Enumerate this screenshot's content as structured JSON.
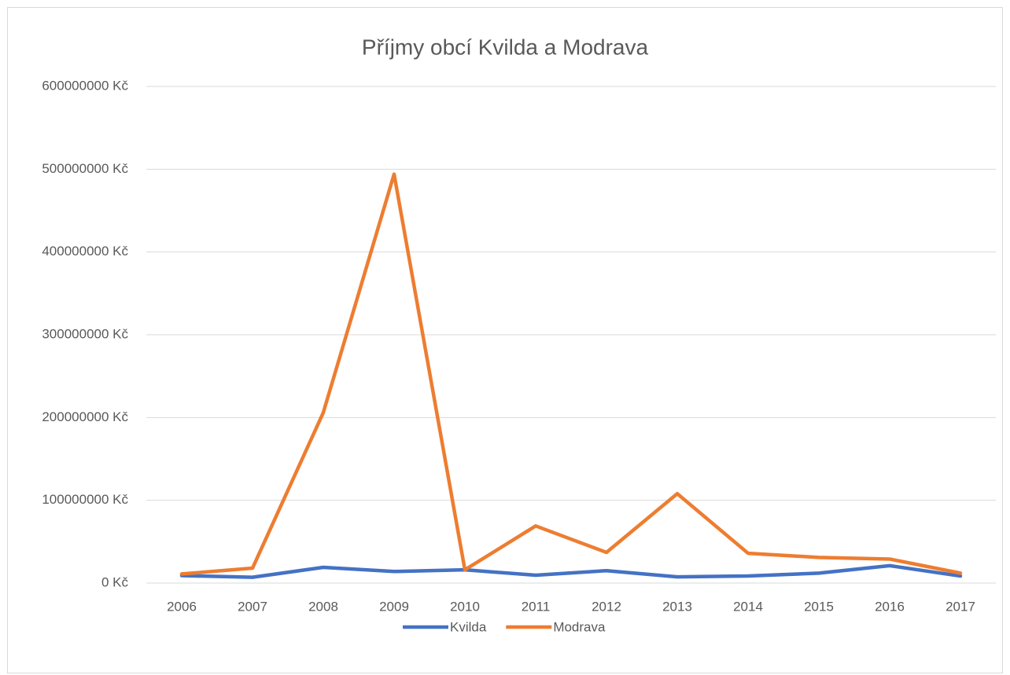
{
  "chart_data": {
    "type": "line",
    "title": "Příjmy obcí Kvilda a Modrava",
    "categories": [
      "2006",
      "2007",
      "2008",
      "2009",
      "2010",
      "2011",
      "2012",
      "2013",
      "2014",
      "2015",
      "2016",
      "2017"
    ],
    "series": [
      {
        "name": "Kvilda",
        "color": "#4472c4",
        "values": [
          9000000,
          7000000,
          19000000,
          14000000,
          16000000,
          9500000,
          15000000,
          7500000,
          8500000,
          12000000,
          21000000,
          8500000
        ]
      },
      {
        "name": "Modrava",
        "color": "#ed7d31",
        "values": [
          11000000,
          18000000,
          206000000,
          494000000,
          16000000,
          69000000,
          37000000,
          108000000,
          36000000,
          31000000,
          29000000,
          12000000
        ]
      }
    ],
    "ylim": [
      0,
      600000000
    ],
    "yticks": [
      {
        "value": 0,
        "label": "0 Kč"
      },
      {
        "value": 100000000,
        "label": "100000000 Kč"
      },
      {
        "value": 200000000,
        "label": "200000000 Kč"
      },
      {
        "value": 300000000,
        "label": "300000000 Kč"
      },
      {
        "value": 400000000,
        "label": "400000000 Kč"
      },
      {
        "value": 500000000,
        "label": "500000000 Kč"
      },
      {
        "value": 600000000,
        "label": "600000000 Kč"
      }
    ],
    "grid": true,
    "legend": "bottom"
  }
}
